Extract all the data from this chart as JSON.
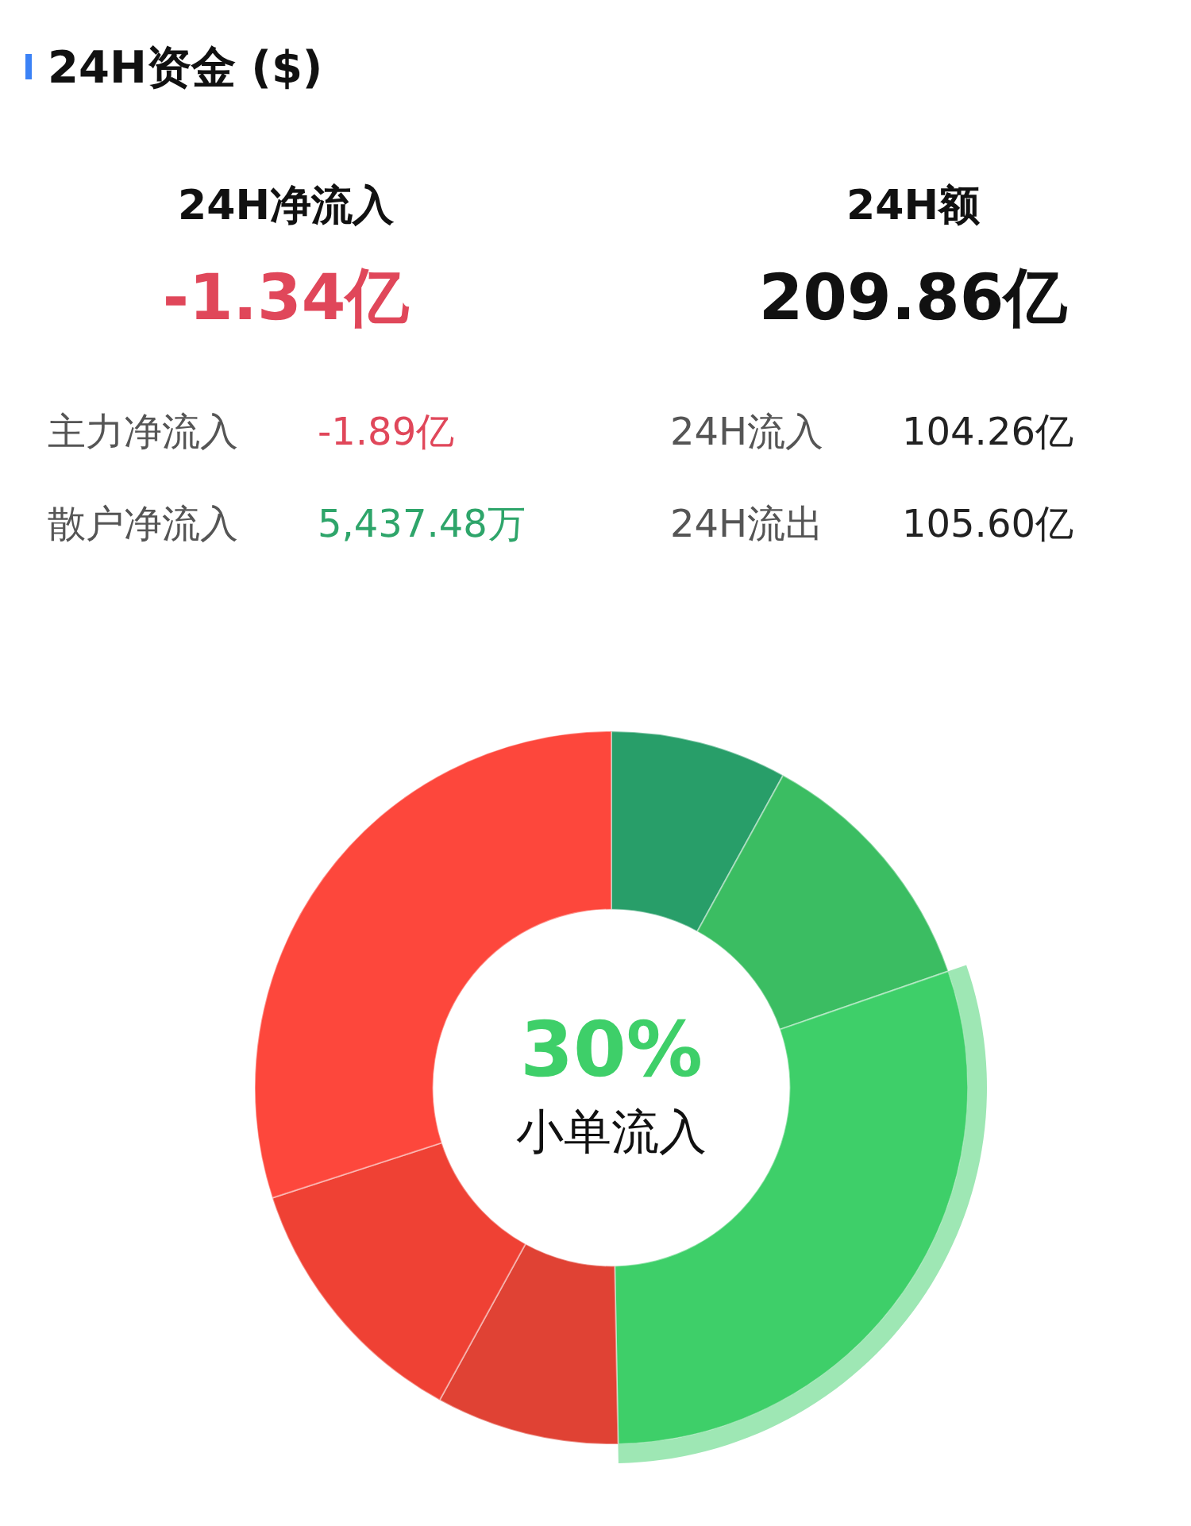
{
  "chart_data": [
    {
      "type": "other",
      "title": "24H资金 ($)",
      "annotations": [
        "24H净流入",
        "-1.34亿",
        "24H额",
        "209.86亿",
        "主力净流入",
        "-1.89亿",
        "散户净流入",
        "5,437.48万",
        "24H流入",
        "104.26亿",
        "24H流出",
        "105.60亿"
      ]
    },
    {
      "type": "donut",
      "categories": [
        null,
        null,
        "小单流入",
        null,
        null,
        null
      ],
      "values": [
        8,
        11.7,
        30,
        8.3,
        12,
        30
      ],
      "colors": [
        "#289e69",
        "#3bbd62",
        "#3ecf69",
        "#e04234",
        "#ef4134",
        "#fd473c"
      ],
      "value_labels": [
        null,
        null,
        "30%",
        null,
        null,
        null
      ],
      "legend": false
    }
  ]
}
